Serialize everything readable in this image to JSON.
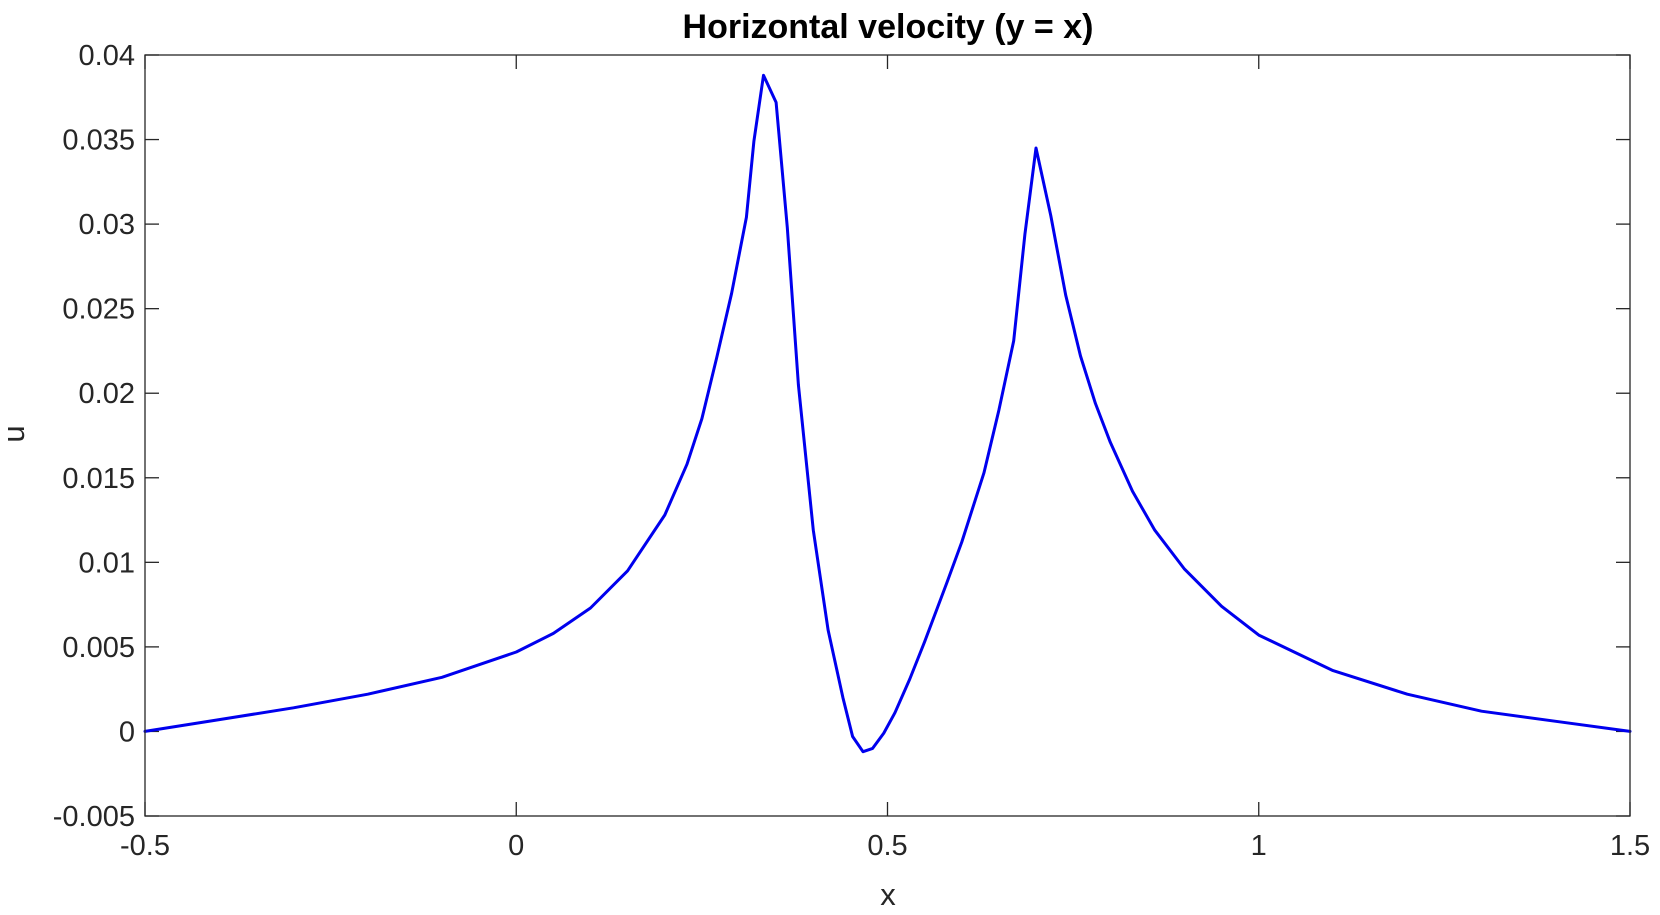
{
  "chart_data": {
    "type": "line",
    "title": "Horizontal velocity (y = x)",
    "xlabel": "x",
    "ylabel": "u",
    "xlim": [
      -0.5,
      1.5
    ],
    "ylim": [
      -0.005,
      0.04
    ],
    "grid": false,
    "box": true,
    "x_ticks": [
      -0.5,
      0,
      0.5,
      1,
      1.5
    ],
    "x_tick_labels": [
      "-0.5",
      "0",
      "0.5",
      "1",
      "1.5"
    ],
    "y_ticks": [
      -0.005,
      0,
      0.005,
      0.01,
      0.015,
      0.02,
      0.025,
      0.03,
      0.035,
      0.04
    ],
    "y_tick_labels": [
      "-0.005",
      "0",
      "0.005",
      "0.01",
      "0.015",
      "0.02",
      "0.025",
      "0.03",
      "0.035",
      "0.04"
    ],
    "series": [
      {
        "color": "#0000ee",
        "x": [
          -0.5,
          -0.4,
          -0.3,
          -0.2,
          -0.1,
          0.0,
          0.05,
          0.1,
          0.15,
          0.2,
          0.23,
          0.25,
          0.27,
          0.29,
          0.31,
          0.32,
          0.333,
          0.35,
          0.365,
          0.38,
          0.4,
          0.42,
          0.44,
          0.453,
          0.467,
          0.48,
          0.495,
          0.51,
          0.53,
          0.55,
          0.58,
          0.6,
          0.63,
          0.65,
          0.67,
          0.685,
          0.7,
          0.72,
          0.74,
          0.76,
          0.78,
          0.8,
          0.83,
          0.86,
          0.9,
          0.95,
          1.0,
          1.1,
          1.2,
          1.3,
          1.4,
          1.5
        ],
        "y": [
          0.0,
          0.0007,
          0.0014,
          0.0022,
          0.0032,
          0.0047,
          0.0058,
          0.0073,
          0.0095,
          0.0128,
          0.0158,
          0.0185,
          0.0221,
          0.0259,
          0.0304,
          0.0349,
          0.0388,
          0.0372,
          0.0298,
          0.0205,
          0.0119,
          0.006,
          0.002,
          -0.0003,
          -0.0012,
          -0.001,
          -0.0001,
          0.0011,
          0.0031,
          0.0053,
          0.0088,
          0.0112,
          0.0153,
          0.019,
          0.0231,
          0.0294,
          0.0345,
          0.0305,
          0.0258,
          0.0222,
          0.0194,
          0.0171,
          0.0142,
          0.0119,
          0.0096,
          0.0074,
          0.0057,
          0.0036,
          0.0022,
          0.0012,
          0.0006,
          0.0
        ]
      }
    ]
  }
}
